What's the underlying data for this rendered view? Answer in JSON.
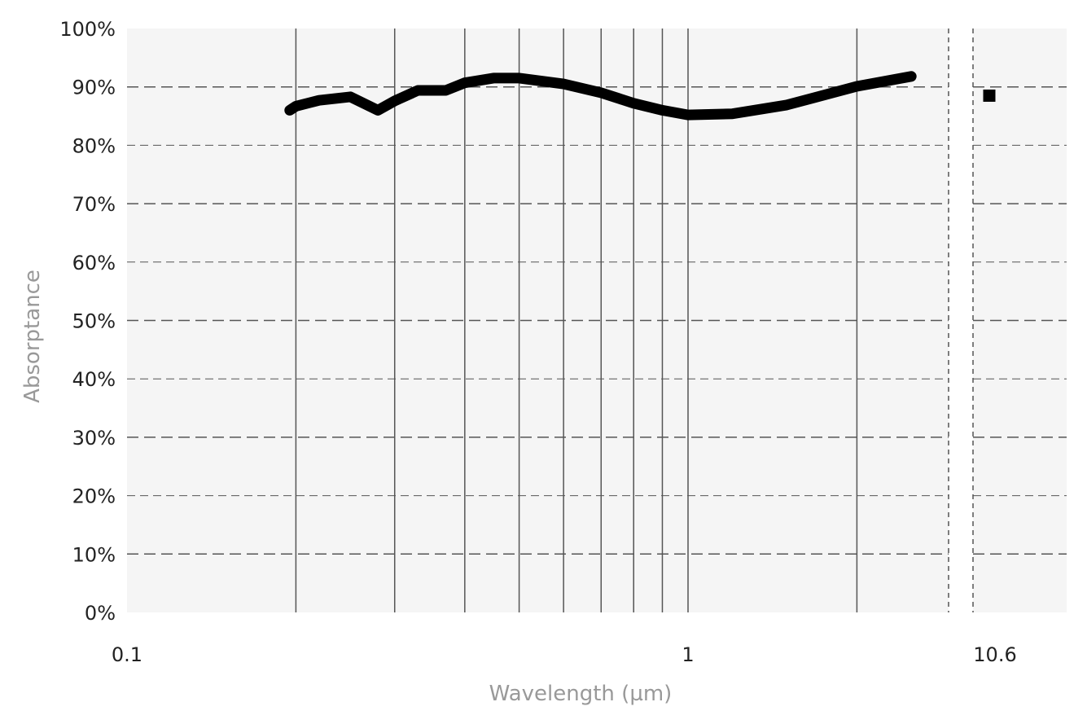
{
  "chart_data": {
    "type": "line",
    "xlabel": "Wavelength (µm)",
    "ylabel": "Absorptance",
    "x_scale": "log",
    "xlim": [
      0.1,
      3.5
    ],
    "x_break_ticks": [
      "0.1",
      "1",
      "10.6"
    ],
    "ylim": [
      0,
      100
    ],
    "y_ticks": [
      "0%",
      "10%",
      "20%",
      "30%",
      "40%",
      "50%",
      "60%",
      "70%",
      "80%",
      "90%",
      "100%"
    ],
    "x_gridlines": [
      0.2,
      0.3,
      0.4,
      0.5,
      0.6,
      0.7,
      0.8,
      0.9,
      1,
      2
    ],
    "grid": {
      "y": "dashed",
      "x": "solid"
    },
    "series": [
      {
        "x": [
          0.195,
          0.2,
          0.22,
          0.25,
          0.28,
          0.3,
          0.33,
          0.37,
          0.4,
          0.45,
          0.5,
          0.6,
          0.7,
          0.8,
          0.9,
          1.0,
          1.2,
          1.5,
          2.0,
          2.5
        ],
        "y": [
          86.0,
          86.7,
          87.7,
          88.3,
          86.0,
          87.6,
          89.4,
          89.4,
          90.7,
          91.5,
          91.5,
          90.5,
          89.0,
          87.2,
          86.0,
          85.2,
          85.4,
          86.9,
          90.1,
          91.8
        ],
        "color": "#000000"
      }
    ],
    "extra_point": {
      "x": 10.6,
      "y": 88.5,
      "marker": "square",
      "color": "#000000"
    },
    "colors": {
      "plot_bg": "#f5f5f5",
      "grid": "#555555",
      "axis_label": "#999999",
      "tick_label": "#222222"
    }
  }
}
